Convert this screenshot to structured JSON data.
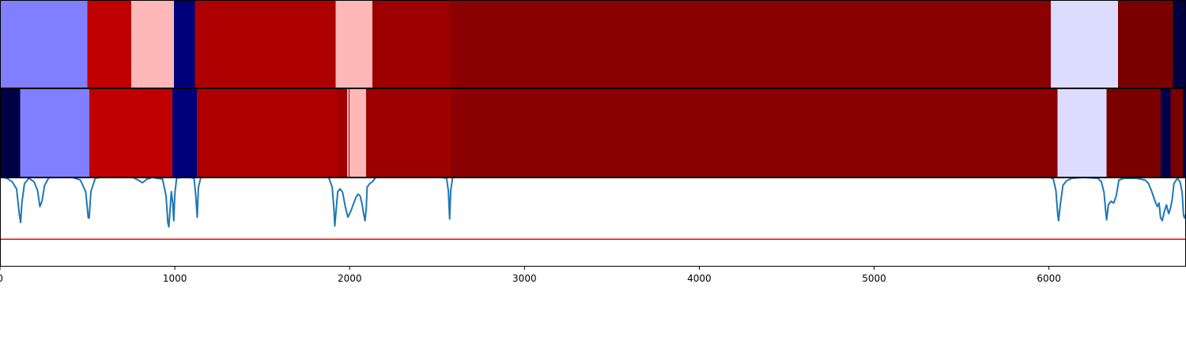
{
  "chart_data": {
    "type": "heatmap",
    "x_range": [
      0,
      6784
    ],
    "x_ticks": [
      0,
      1000,
      2000,
      3000,
      4000,
      5000,
      6000
    ],
    "x_tick_labels": [
      "0",
      "1000",
      "2000",
      "3000",
      "4000",
      "5000",
      "6000"
    ],
    "colormap": "seismic",
    "grid": false,
    "legend": "none",
    "rows": [
      {
        "segments": [
          {
            "start": 0,
            "end": 500,
            "color": "#7f7fff"
          },
          {
            "start": 500,
            "end": 750,
            "color": "#c00000"
          },
          {
            "start": 750,
            "end": 995,
            "color": "#ffb8b8"
          },
          {
            "start": 995,
            "end": 1115,
            "color": "#00007a"
          },
          {
            "start": 1115,
            "end": 1920,
            "color": "#ae0000"
          },
          {
            "start": 1920,
            "end": 2130,
            "color": "#ffb8b8"
          },
          {
            "start": 2130,
            "end": 2575,
            "color": "#9c0000"
          },
          {
            "start": 2575,
            "end": 6010,
            "color": "#8b0000"
          },
          {
            "start": 6010,
            "end": 6395,
            "color": "#dcdcff"
          },
          {
            "start": 6395,
            "end": 6710,
            "color": "#7a0000"
          },
          {
            "start": 6710,
            "end": 6784,
            "color": "#000040"
          }
        ]
      },
      {
        "segments": [
          {
            "start": 0,
            "end": 115,
            "color": "#000045"
          },
          {
            "start": 115,
            "end": 510,
            "color": "#7f7fff"
          },
          {
            "start": 510,
            "end": 985,
            "color": "#c00000"
          },
          {
            "start": 985,
            "end": 1125,
            "color": "#00007a"
          },
          {
            "start": 1125,
            "end": 1925,
            "color": "#ae0000"
          },
          {
            "start": 1925,
            "end": 1985,
            "color": "#a20000"
          },
          {
            "start": 1985,
            "end": 1995,
            "color": "#ffb8b8"
          },
          {
            "start": 1995,
            "end": 2000,
            "color": "#a20000"
          },
          {
            "start": 2000,
            "end": 2095,
            "color": "#ffb8b8"
          },
          {
            "start": 2095,
            "end": 2580,
            "color": "#9c0000"
          },
          {
            "start": 2580,
            "end": 6050,
            "color": "#8b0000"
          },
          {
            "start": 6050,
            "end": 6330,
            "color": "#dcdcff"
          },
          {
            "start": 6330,
            "end": 6640,
            "color": "#7a0000"
          },
          {
            "start": 6640,
            "end": 6695,
            "color": "#00004d"
          },
          {
            "start": 6695,
            "end": 6765,
            "color": "#7a0000"
          },
          {
            "start": 6765,
            "end": 6784,
            "color": "#000045"
          }
        ]
      }
    ],
    "line_panel": {
      "y_range": [
        0,
        1
      ],
      "threshold": 0.31,
      "threshold_color": "#ff0000",
      "series_color": "#1f77b4",
      "points": [
        [
          0,
          1.02
        ],
        [
          40,
          1.0
        ],
        [
          70,
          0.96
        ],
        [
          95,
          0.88
        ],
        [
          110,
          0.6
        ],
        [
          118,
          0.5
        ],
        [
          125,
          0.72
        ],
        [
          140,
          0.94
        ],
        [
          165,
          1.0
        ],
        [
          195,
          0.96
        ],
        [
          215,
          0.86
        ],
        [
          228,
          0.68
        ],
        [
          240,
          0.74
        ],
        [
          255,
          0.92
        ],
        [
          280,
          1.01
        ],
        [
          320,
          1.02
        ],
        [
          400,
          1.02
        ],
        [
          460,
          0.98
        ],
        [
          490,
          0.85
        ],
        [
          505,
          0.55
        ],
        [
          510,
          0.55
        ],
        [
          520,
          0.85
        ],
        [
          545,
          1.0
        ],
        [
          600,
          1.02
        ],
        [
          700,
          1.02
        ],
        [
          760,
          1.01
        ],
        [
          790,
          0.98
        ],
        [
          815,
          0.95
        ],
        [
          840,
          0.99
        ],
        [
          870,
          1.01
        ],
        [
          930,
          0.99
        ],
        [
          950,
          0.8
        ],
        [
          960,
          0.5
        ],
        [
          966,
          0.45
        ],
        [
          972,
          0.62
        ],
        [
          980,
          0.85
        ],
        [
          988,
          0.72
        ],
        [
          994,
          0.52
        ],
        [
          1000,
          0.82
        ],
        [
          1010,
          1.0
        ],
        [
          1060,
          1.02
        ],
        [
          1110,
          1.0
        ],
        [
          1120,
          0.8
        ],
        [
          1128,
          0.56
        ],
        [
          1135,
          0.9
        ],
        [
          1150,
          1.02
        ],
        [
          1200,
          1.02
        ],
        [
          1500,
          1.02
        ],
        [
          1800,
          1.02
        ],
        [
          1880,
          1.01
        ],
        [
          1900,
          0.9
        ],
        [
          1910,
          0.66
        ],
        [
          1915,
          0.46
        ],
        [
          1922,
          0.62
        ],
        [
          1932,
          0.85
        ],
        [
          1945,
          0.88
        ],
        [
          1960,
          0.84
        ],
        [
          1975,
          0.68
        ],
        [
          1990,
          0.56
        ],
        [
          2005,
          0.62
        ],
        [
          2020,
          0.7
        ],
        [
          2035,
          0.78
        ],
        [
          2048,
          0.82
        ],
        [
          2060,
          0.8
        ],
        [
          2070,
          0.72
        ],
        [
          2080,
          0.6
        ],
        [
          2088,
          0.52
        ],
        [
          2095,
          0.66
        ],
        [
          2100,
          0.9
        ],
        [
          2115,
          0.94
        ],
        [
          2130,
          0.96
        ],
        [
          2145,
          1.0
        ],
        [
          2160,
          1.02
        ],
        [
          2300,
          1.02
        ],
        [
          2500,
          1.02
        ],
        [
          2555,
          1.0
        ],
        [
          2565,
          0.85
        ],
        [
          2572,
          0.54
        ],
        [
          2578,
          0.86
        ],
        [
          2590,
          1.02
        ],
        [
          3000,
          1.02
        ],
        [
          4000,
          1.02
        ],
        [
          5000,
          1.02
        ],
        [
          5800,
          1.02
        ],
        [
          6000,
          1.02
        ],
        [
          6025,
          0.99
        ],
        [
          6040,
          0.86
        ],
        [
          6050,
          0.6
        ],
        [
          6055,
          0.52
        ],
        [
          6065,
          0.7
        ],
        [
          6080,
          0.92
        ],
        [
          6100,
          0.97
        ],
        [
          6130,
          1.0
        ],
        [
          6200,
          1.01
        ],
        [
          6280,
          1.0
        ],
        [
          6300,
          0.96
        ],
        [
          6315,
          0.84
        ],
        [
          6325,
          0.62
        ],
        [
          6330,
          0.53
        ],
        [
          6340,
          0.7
        ],
        [
          6355,
          0.74
        ],
        [
          6370,
          0.72
        ],
        [
          6385,
          0.8
        ],
        [
          6400,
          0.98
        ],
        [
          6430,
          1.0
        ],
        [
          6500,
          1.0
        ],
        [
          6550,
          0.98
        ],
        [
          6570,
          0.94
        ],
        [
          6590,
          0.84
        ],
        [
          6605,
          0.75
        ],
        [
          6620,
          0.68
        ],
        [
          6630,
          0.72
        ],
        [
          6638,
          0.56
        ],
        [
          6648,
          0.52
        ],
        [
          6660,
          0.62
        ],
        [
          6672,
          0.7
        ],
        [
          6685,
          0.6
        ],
        [
          6695,
          0.66
        ],
        [
          6705,
          0.76
        ],
        [
          6715,
          0.94
        ],
        [
          6735,
          1.0
        ],
        [
          6750,
          0.96
        ],
        [
          6762,
          0.84
        ],
        [
          6770,
          0.58
        ],
        [
          6776,
          0.55
        ],
        [
          6784,
          0.6
        ]
      ]
    }
  }
}
